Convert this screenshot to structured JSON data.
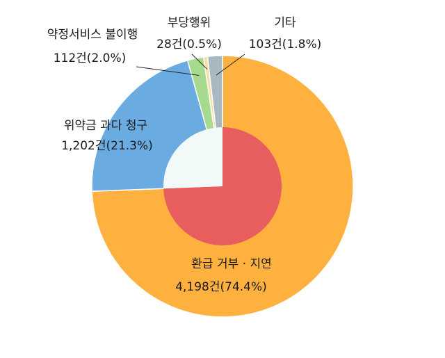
{
  "chart_data": {
    "type": "pie",
    "title": "",
    "unit": "건",
    "slices": [
      {
        "name": "환급 거부 · 지연",
        "count": 4198,
        "count_label": "4,198건(74.4%)",
        "percent": 74.4,
        "color": "#FFB140"
      },
      {
        "name": "위약금 과다 청구",
        "count": 1202,
        "count_label": "1,202건(21.3%)",
        "percent": 21.3,
        "color": "#6AABE2"
      },
      {
        "name": "약정서비스 불이행",
        "count": 112,
        "count_label": "112건(2.0%)",
        "percent": 2.0,
        "color": "#A6DA8F"
      },
      {
        "name": "부당행위",
        "count": 28,
        "count_label": "28건(0.5%)",
        "percent": 0.5,
        "color": "#F7DFA6"
      },
      {
        "name": "기타",
        "count": 103,
        "count_label": "103건(1.8%)",
        "percent": 1.8,
        "color": "#A8B8C0"
      }
    ],
    "inner_highlight_color": "#E85D5E",
    "inner_gap_color": "#F1FAF9"
  }
}
